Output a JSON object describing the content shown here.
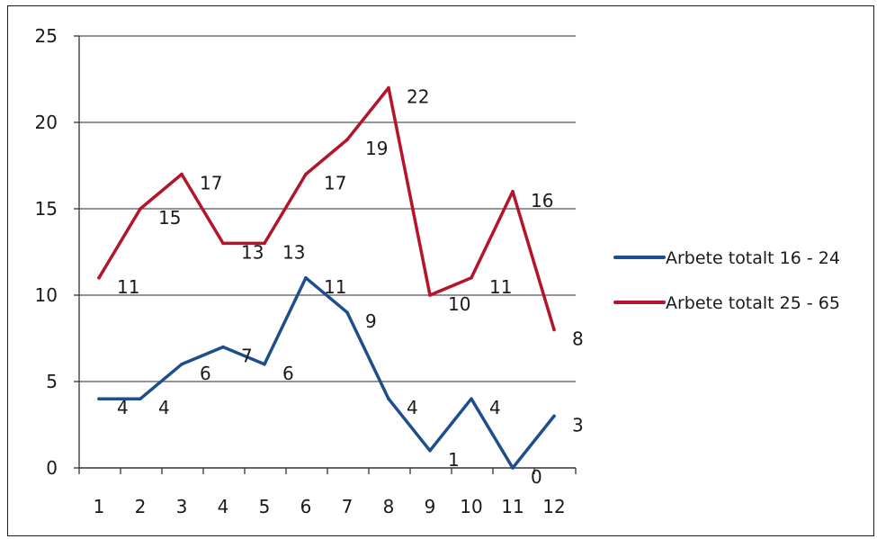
{
  "chart_data": {
    "type": "line",
    "title": "",
    "xlabel": "",
    "ylabel": "",
    "x": [
      1,
      2,
      3,
      4,
      5,
      6,
      7,
      8,
      9,
      10,
      11,
      12
    ],
    "x_tick_labels": [
      "1",
      "2",
      "3",
      "4",
      "5",
      "6",
      "7",
      "8",
      "9",
      "10",
      "11",
      "12"
    ],
    "ylim": [
      0,
      25
    ],
    "y_ticks": [
      0,
      5,
      10,
      15,
      20,
      25
    ],
    "grid": true,
    "legend_position": "right",
    "series": [
      {
        "name": "Arbete totalt 16 - 24",
        "color": "#1f4e8c",
        "values": [
          4,
          4,
          6,
          7,
          6,
          11,
          9,
          4,
          1,
          4,
          0,
          3
        ],
        "labels": [
          "4",
          "4",
          "6",
          "7",
          "6",
          "11",
          "9",
          "4",
          "1",
          "4",
          "0",
          "3"
        ]
      },
      {
        "name": "Arbete totalt 25 - 65",
        "color": "#b5152b",
        "values": [
          11,
          15,
          17,
          13,
          13,
          17,
          19,
          22,
          10,
          11,
          16,
          8
        ],
        "labels": [
          "11",
          "15",
          "17",
          "13",
          "13",
          "17",
          "19",
          "22",
          "10",
          "11",
          "16",
          "8"
        ]
      }
    ]
  }
}
